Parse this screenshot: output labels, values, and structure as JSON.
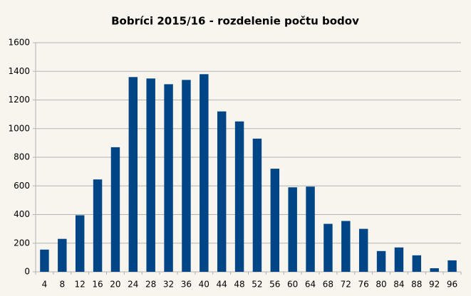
{
  "chart_data": {
    "type": "bar",
    "title": "Bobríci 2015/16 - rozdelenie počtu bodov",
    "categories": [
      "4",
      "8",
      "12",
      "16",
      "20",
      "24",
      "28",
      "32",
      "36",
      "40",
      "44",
      "48",
      "52",
      "56",
      "60",
      "64",
      "68",
      "72",
      "76",
      "80",
      "84",
      "88",
      "92",
      "96"
    ],
    "values": [
      155,
      230,
      395,
      645,
      870,
      1360,
      1350,
      1310,
      1340,
      1380,
      1120,
      1050,
      930,
      720,
      590,
      595,
      335,
      355,
      300,
      145,
      170,
      115,
      25,
      80
    ],
    "color": "#004586",
    "ylim": [
      0,
      1600
    ],
    "yticks": [
      0,
      200,
      400,
      600,
      800,
      1000,
      1200,
      1400,
      1600
    ],
    "grid": true
  }
}
